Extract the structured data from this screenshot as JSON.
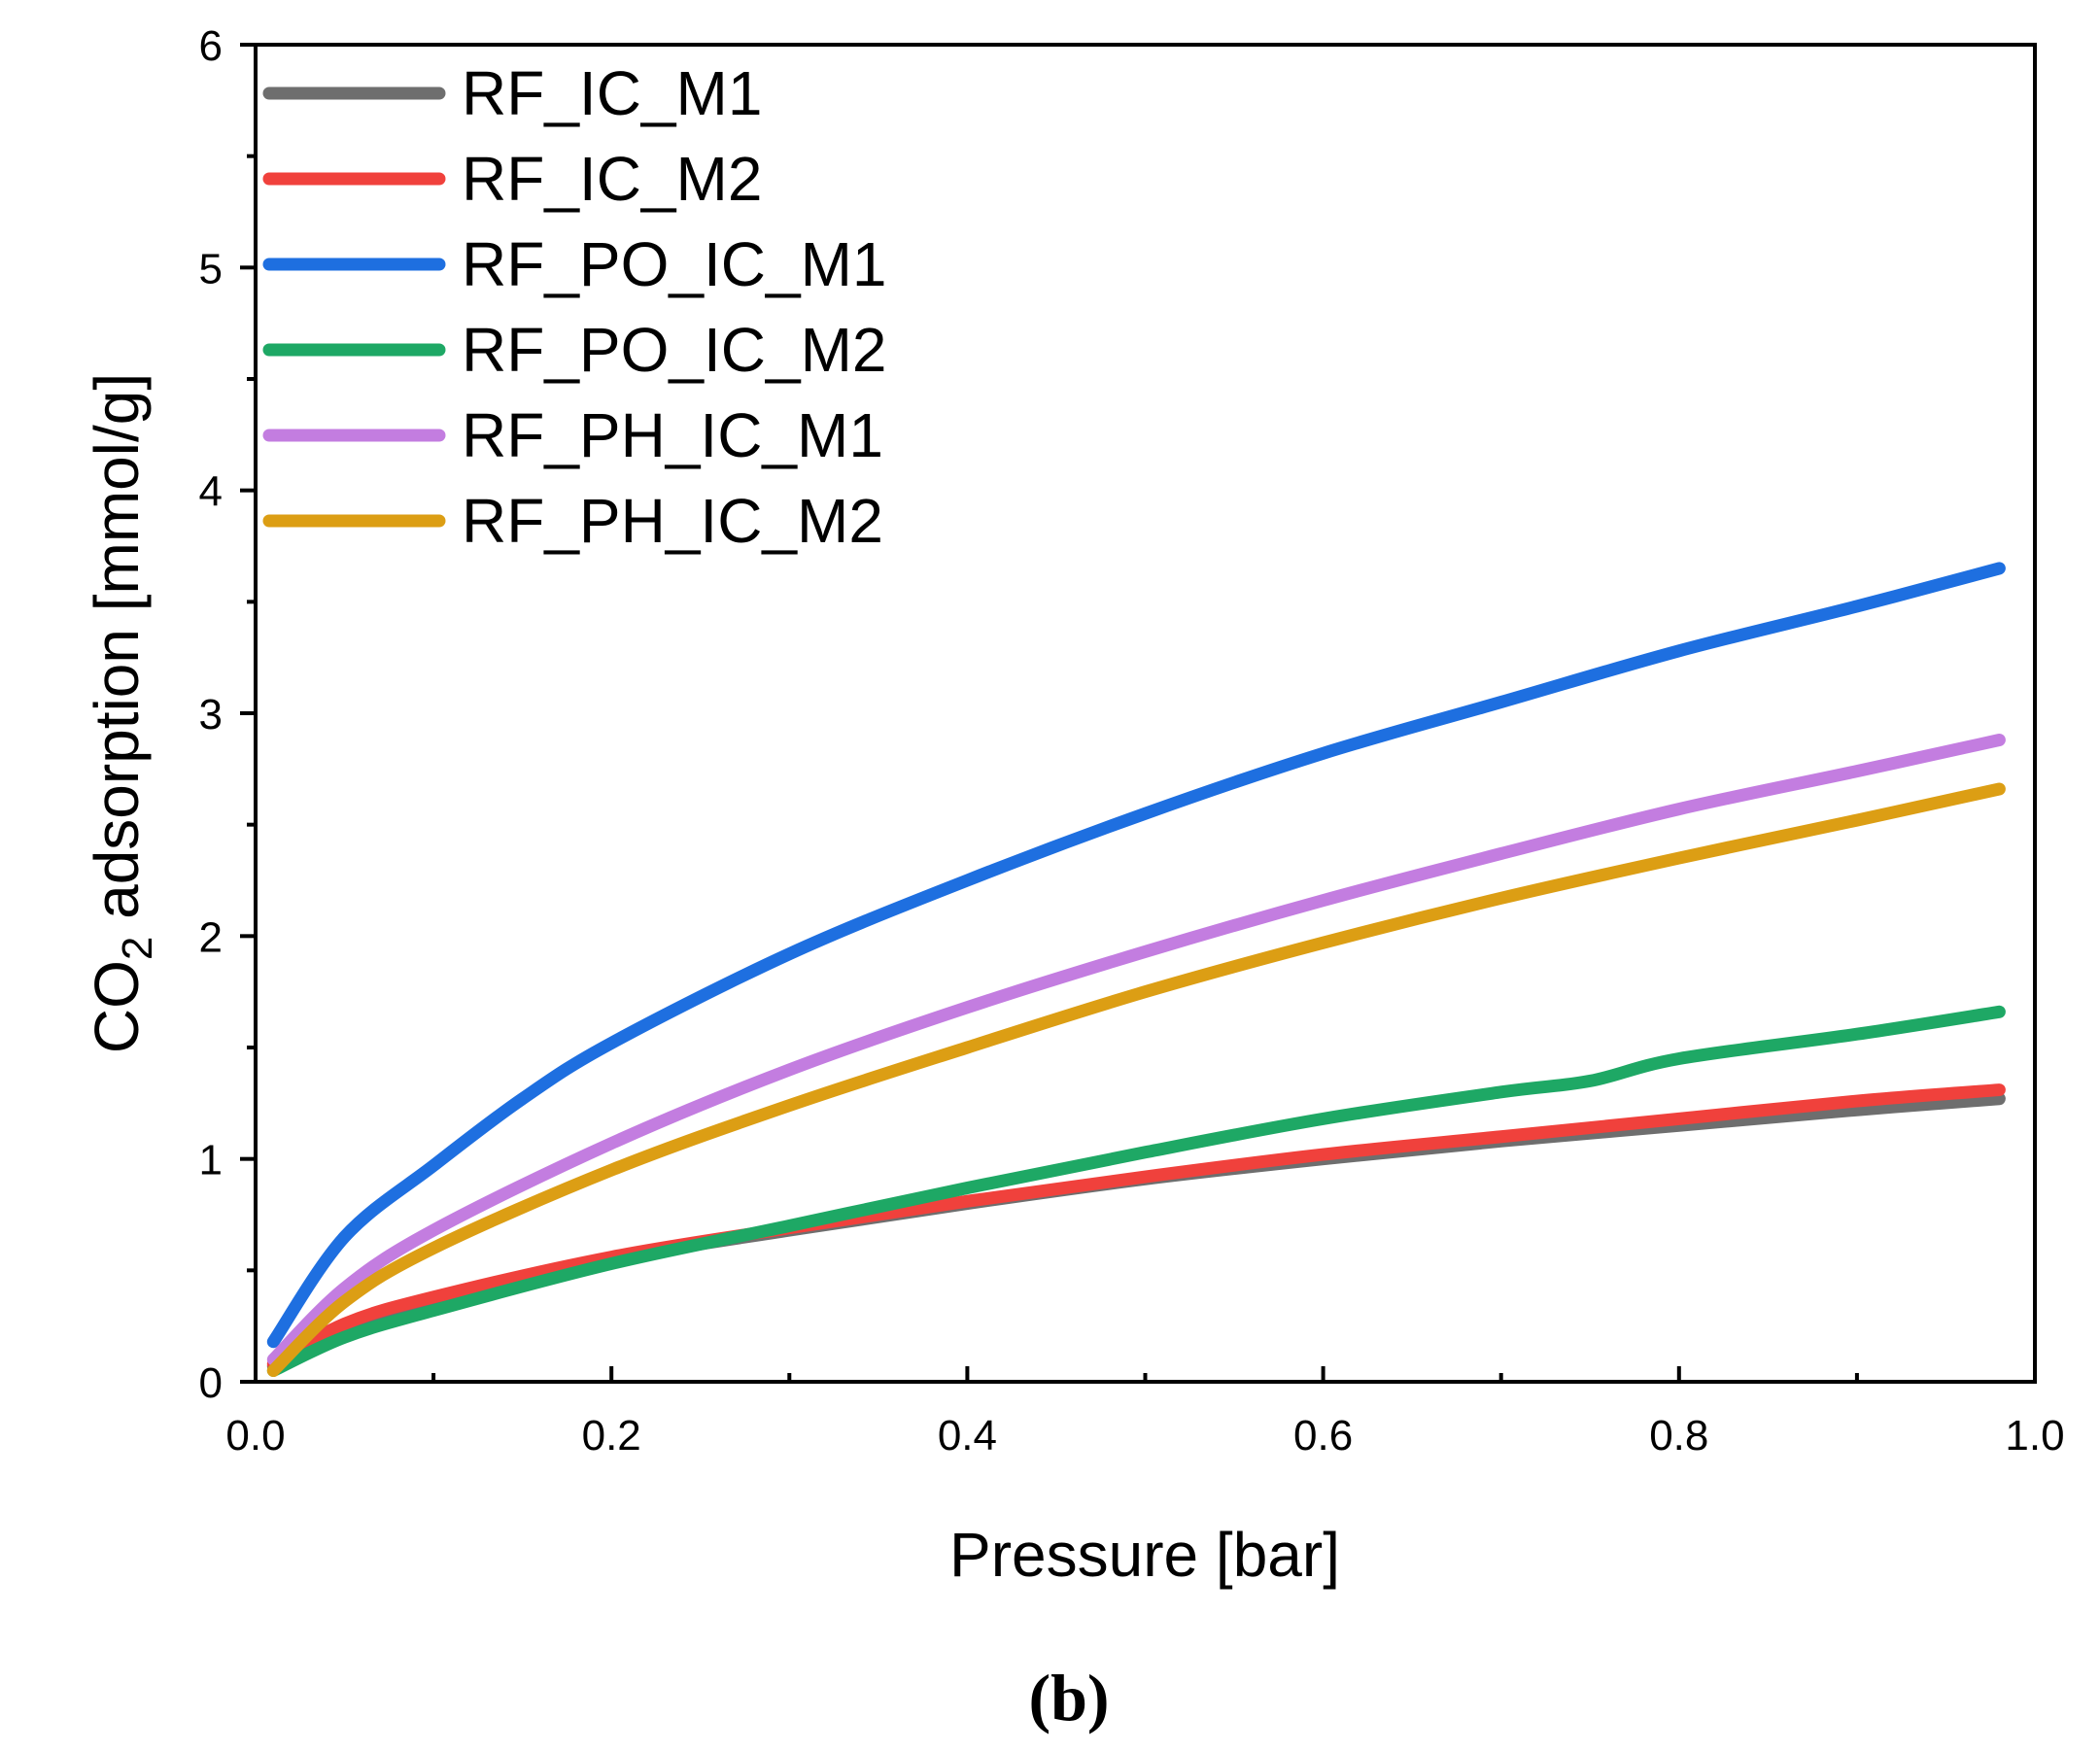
{
  "chart_data": {
    "type": "line",
    "title": "",
    "xlabel": "Pressure [bar]",
    "ylabel_main": "CO",
    "ylabel_sub": "2",
    "ylabel_rest": " adsorption [mmol/g]",
    "xlim": [
      0,
      1
    ],
    "ylim": [
      0,
      6
    ],
    "xticks": [
      0.0,
      0.2,
      0.4,
      0.6,
      0.8,
      1.0
    ],
    "xtick_labels": [
      "0.0",
      "0.2",
      "0.4",
      "0.6",
      "0.8",
      "1.0"
    ],
    "yticks": [
      0,
      1,
      2,
      3,
      4,
      5,
      6
    ],
    "ytick_labels": [
      "0",
      "1",
      "2",
      "3",
      "4",
      "5",
      "6"
    ],
    "legend_position": "top-left",
    "grid": false,
    "panel_label": "(b)",
    "series": [
      {
        "name": "RF_IC_M1",
        "color": "#6e6e6e",
        "x": [
          0.01,
          0.05,
          0.1,
          0.2,
          0.3,
          0.4,
          0.5,
          0.6,
          0.7,
          0.8,
          0.9,
          0.98
        ],
        "y": [
          0.07,
          0.25,
          0.37,
          0.55,
          0.68,
          0.8,
          0.91,
          1.0,
          1.08,
          1.15,
          1.22,
          1.27
        ]
      },
      {
        "name": "RF_IC_M2",
        "color": "#f0413c",
        "x": [
          0.01,
          0.05,
          0.1,
          0.2,
          0.3,
          0.4,
          0.5,
          0.6,
          0.7,
          0.8,
          0.9,
          0.98
        ],
        "y": [
          0.08,
          0.26,
          0.38,
          0.56,
          0.69,
          0.81,
          0.92,
          1.02,
          1.1,
          1.18,
          1.26,
          1.31
        ]
      },
      {
        "name": "RF_PO_IC_M1",
        "color": "#1e6fe0",
        "x": [
          0.01,
          0.05,
          0.1,
          0.15,
          0.2,
          0.3,
          0.4,
          0.5,
          0.6,
          0.7,
          0.8,
          0.9,
          0.98
        ],
        "y": [
          0.18,
          0.65,
          0.97,
          1.27,
          1.52,
          1.92,
          2.25,
          2.55,
          2.82,
          3.05,
          3.28,
          3.48,
          3.65
        ]
      },
      {
        "name": "RF_PO_IC_M2",
        "color": "#1ea865",
        "x": [
          0.01,
          0.05,
          0.1,
          0.2,
          0.3,
          0.4,
          0.5,
          0.6,
          0.7,
          0.75,
          0.8,
          0.9,
          0.98
        ],
        "y": [
          0.05,
          0.2,
          0.32,
          0.53,
          0.7,
          0.87,
          1.03,
          1.18,
          1.3,
          1.35,
          1.45,
          1.56,
          1.66
        ]
      },
      {
        "name": "RF_PH_IC_M1",
        "color": "#c37de0",
        "x": [
          0.01,
          0.05,
          0.1,
          0.2,
          0.3,
          0.4,
          0.5,
          0.6,
          0.7,
          0.8,
          0.9,
          0.98
        ],
        "y": [
          0.1,
          0.42,
          0.68,
          1.07,
          1.4,
          1.68,
          1.93,
          2.16,
          2.37,
          2.57,
          2.74,
          2.88
        ]
      },
      {
        "name": "RF_PH_IC_M2",
        "color": "#dc9e14",
        "x": [
          0.01,
          0.05,
          0.1,
          0.2,
          0.3,
          0.4,
          0.5,
          0.6,
          0.7,
          0.8,
          0.9,
          0.98
        ],
        "y": [
          0.05,
          0.36,
          0.6,
          0.95,
          1.24,
          1.5,
          1.75,
          1.97,
          2.17,
          2.35,
          2.52,
          2.66
        ]
      }
    ]
  }
}
